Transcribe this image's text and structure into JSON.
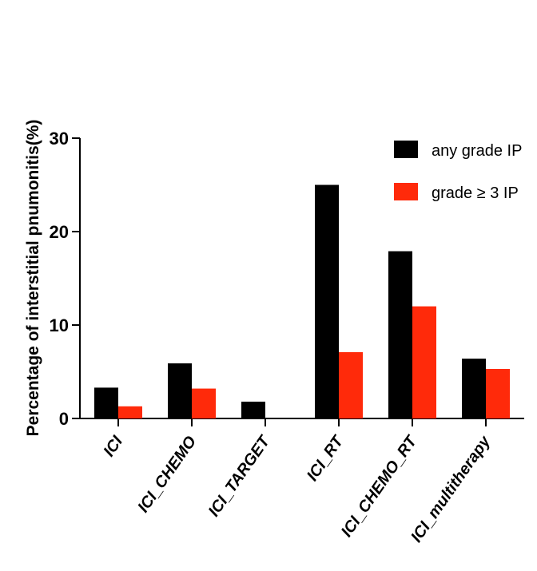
{
  "chart_data": {
    "type": "bar",
    "title": "",
    "xlabel": "",
    "ylabel": "Percentage of interstitial pnumonitis(%)",
    "ylim": [
      0,
      30
    ],
    "yticks": [
      0,
      10,
      20,
      30
    ],
    "grid": false,
    "legend_position": "top-right",
    "categories": [
      "ICI",
      "ICI_CHEMO",
      "ICI_TARGET",
      "ICI_RT",
      "ICI_CHEMO_RT",
      "ICI_multitherapy"
    ],
    "series": [
      {
        "name": "any grade IP",
        "color": "#000000",
        "values": [
          3.3,
          5.9,
          1.8,
          25.0,
          17.9,
          6.4
        ]
      },
      {
        "name": "grade ≥ 3 IP",
        "color": "#ff2a0a",
        "values": [
          1.3,
          3.2,
          0,
          7.1,
          12.0,
          5.3
        ]
      }
    ]
  }
}
